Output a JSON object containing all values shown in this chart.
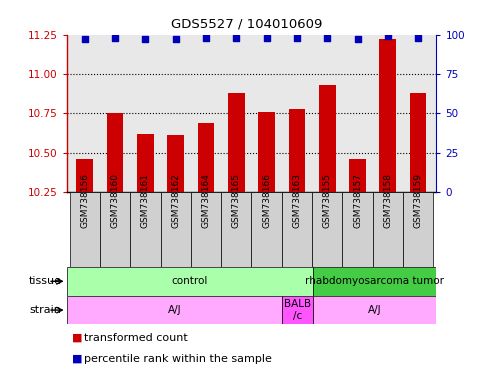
{
  "title": "GDS5527 / 104010609",
  "samples": [
    "GSM738156",
    "GSM738160",
    "GSM738161",
    "GSM738162",
    "GSM738164",
    "GSM738165",
    "GSM738166",
    "GSM738163",
    "GSM738155",
    "GSM738157",
    "GSM738158",
    "GSM738159"
  ],
  "bar_values": [
    10.46,
    10.75,
    10.62,
    10.61,
    10.69,
    10.88,
    10.76,
    10.78,
    10.93,
    10.46,
    11.22,
    10.88
  ],
  "dot_values": [
    97,
    98,
    97,
    97,
    98,
    98,
    98,
    98,
    98,
    97,
    99,
    98
  ],
  "ylim_left": [
    10.25,
    11.25
  ],
  "ylim_right": [
    0,
    100
  ],
  "yticks_left": [
    10.25,
    10.5,
    10.75,
    11.0,
    11.25
  ],
  "yticks_right": [
    0,
    25,
    50,
    75,
    100
  ],
  "bar_color": "#cc0000",
  "dot_color": "#0000bb",
  "bar_bottom": 10.25,
  "tissue_groups": [
    {
      "label": "control",
      "start": 0,
      "end": 8,
      "color": "#aaffaa"
    },
    {
      "label": "rhabdomyosarcoma tumor",
      "start": 8,
      "end": 12,
      "color": "#44cc44"
    }
  ],
  "strain_groups": [
    {
      "label": "A/J",
      "start": 0,
      "end": 7,
      "color": "#ffaaff"
    },
    {
      "label": "BALB\n/c",
      "start": 7,
      "end": 8,
      "color": "#ff55ff"
    },
    {
      "label": "A/J",
      "start": 8,
      "end": 12,
      "color": "#ffaaff"
    }
  ],
  "legend_items": [
    {
      "color": "#cc0000",
      "label": "transformed count"
    },
    {
      "color": "#0000bb",
      "label": "percentile rank within the sample"
    }
  ],
  "left_axis_color": "#cc0000",
  "right_axis_color": "#0000bb",
  "plot_bg": "#e8e8e8",
  "label_area_bg": "#d0d0d0"
}
